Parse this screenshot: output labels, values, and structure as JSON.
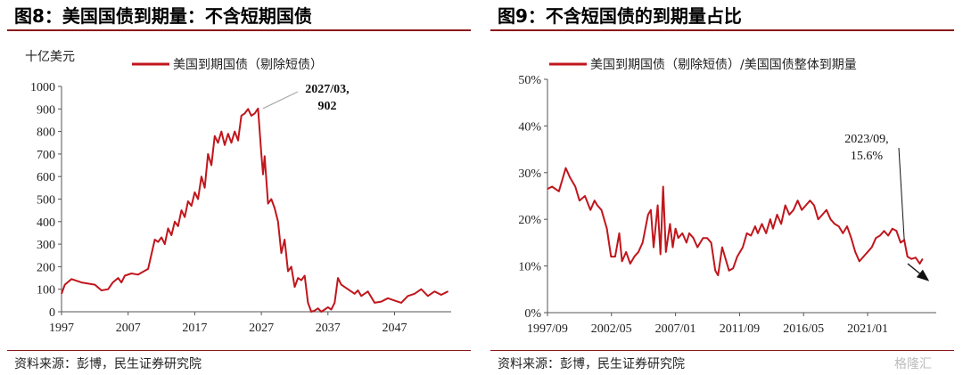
{
  "left_panel": {
    "title": "图8：美国国债到期量：不含短期国债",
    "source": "资料来源：彭博，民生证券研究院"
  },
  "right_panel": {
    "title": "图9：不含短国债的到期量占比",
    "source": "资料来源：彭博，民生证券研究院"
  },
  "watermark": "格隆汇",
  "colors": {
    "series": "#c0161c",
    "rule": "#8b1a1a",
    "axis": "#555555"
  },
  "chart_data": [
    {
      "type": "line",
      "unit_label": "十亿美元",
      "ylim": [
        0,
        1000
      ],
      "yticks": [
        "0",
        "100",
        "200",
        "300",
        "400",
        "500",
        "600",
        "700",
        "800",
        "900",
        "1000"
      ],
      "xlim": [
        1997,
        2055.5
      ],
      "xticks": [
        "1997",
        "2007",
        "2017",
        "2027",
        "2037",
        "2047"
      ],
      "grid": false,
      "legend_position": "top",
      "series": [
        {
          "name": "美国到期国债（剔除短债）",
          "x": [
            1997,
            1997.5,
            1998.5,
            2000,
            2002,
            2003,
            2004,
            2004.7,
            2005.5,
            2006,
            2006.5,
            2007.5,
            2008.5,
            2010,
            2011,
            2011.5,
            2012,
            2012.5,
            2013,
            2013.5,
            2014,
            2014.5,
            2015,
            2015.5,
            2016,
            2016.5,
            2017,
            2017.5,
            2018,
            2018.5,
            2019,
            2019.5,
            2020,
            2020.5,
            2021,
            2021.5,
            2022,
            2022.5,
            2023,
            2023.5,
            2024,
            2024.5,
            2025,
            2025.5,
            2026,
            2026.5,
            2027,
            2027.25,
            2027.5,
            2028,
            2028.5,
            2029,
            2029.5,
            2030,
            2030.5,
            2031,
            2031.5,
            2032,
            2032.5,
            2033,
            2033.5,
            2034,
            2034.5,
            2035,
            2035.5,
            2036,
            2036.5,
            2037,
            2037.5,
            2038,
            2038.5,
            2039,
            2039.5,
            2040,
            2040.5,
            2041,
            2041.5,
            2042,
            2043,
            2044,
            2045,
            2046,
            2047,
            2048,
            2049,
            2050,
            2051,
            2052,
            2053,
            2054,
            2055
          ],
          "values": [
            80,
            120,
            145,
            130,
            120,
            95,
            100,
            130,
            150,
            130,
            160,
            170,
            165,
            190,
            320,
            310,
            330,
            300,
            370,
            340,
            400,
            380,
            450,
            420,
            490,
            470,
            530,
            500,
            600,
            550,
            700,
            650,
            780,
            750,
            800,
            740,
            790,
            750,
            800,
            760,
            870,
            880,
            900,
            870,
            880,
            902,
            700,
            610,
            690,
            480,
            500,
            460,
            400,
            260,
            320,
            180,
            200,
            110,
            150,
            140,
            160,
            40,
            0,
            5,
            15,
            0,
            10,
            20,
            10,
            40,
            150,
            120,
            110,
            100,
            90,
            80,
            95,
            70,
            90,
            40,
            45,
            60,
            50,
            40,
            70,
            80,
            100,
            70,
            90,
            75,
            90
          ]
        }
      ],
      "annotation": {
        "text_line1": "2027/03,",
        "text_line2": "902",
        "x": 2027.25,
        "y": 902
      }
    },
    {
      "type": "line",
      "ylim": [
        0,
        50
      ],
      "yticks": [
        "0%",
        "10%",
        "20%",
        "30%",
        "40%",
        "50%"
      ],
      "xlim": [
        1997.67,
        2026.0
      ],
      "xticks": [
        "1997/09",
        "2002/05",
        "2007/01",
        "2011/09",
        "2016/05",
        "2021/01"
      ],
      "xtick_values": [
        1997.67,
        2002.33,
        2007.0,
        2011.67,
        2016.33,
        2021.0
      ],
      "grid": false,
      "legend_position": "top",
      "series": [
        {
          "name": "美国到期国债（剔除短债）/美国国债整体到期量",
          "x": [
            1997.67,
            1998,
            1998.5,
            1999,
            1999.3,
            1999.7,
            2000,
            2000.4,
            2000.8,
            2001.1,
            2001.3,
            2001.6,
            2002,
            2002.3,
            2002.6,
            2002.9,
            2003.1,
            2003.4,
            2003.7,
            2004,
            2004.3,
            2004.6,
            2005,
            2005.2,
            2005.4,
            2005.7,
            2005.9,
            2006.1,
            2006.3,
            2006.6,
            2006.8,
            2007,
            2007.2,
            2007.5,
            2007.8,
            2008,
            2008.3,
            2008.6,
            2009,
            2009.3,
            2009.6,
            2009.9,
            2010.1,
            2010.4,
            2010.6,
            2010.9,
            2011.2,
            2011.5,
            2011.9,
            2012.2,
            2012.5,
            2012.8,
            2013,
            2013.3,
            2013.6,
            2013.9,
            2014.1,
            2014.4,
            2014.7,
            2015,
            2015.3,
            2015.6,
            2015.9,
            2016.2,
            2016.5,
            2016.8,
            2017.1,
            2017.4,
            2017.7,
            2018,
            2018.3,
            2018.6,
            2018.9,
            2019.2,
            2019.5,
            2019.8,
            2020.1,
            2020.4,
            2020.7,
            2021,
            2021.3,
            2021.6,
            2021.9,
            2022.2,
            2022.5,
            2022.8,
            2023.1,
            2023.4,
            2023.67,
            2023.9,
            2024.2,
            2024.5,
            2024.8,
            2025
          ],
          "values": [
            26.5,
            27,
            26,
            31,
            29,
            27,
            24,
            25,
            22,
            24,
            23,
            22,
            18,
            12,
            12,
            17,
            11,
            13,
            10.5,
            12,
            13,
            15,
            21,
            22,
            14,
            23,
            12.5,
            27,
            13,
            19,
            14,
            18,
            16,
            17,
            15,
            17,
            16,
            14,
            16,
            16,
            15,
            9,
            8,
            14,
            12,
            9,
            9.5,
            12,
            14,
            17,
            16.5,
            18.5,
            17,
            19,
            17,
            20,
            18,
            21,
            19,
            23,
            21,
            22,
            24,
            22,
            23,
            24,
            23,
            20,
            21,
            22,
            20,
            19,
            18.5,
            17,
            18.5,
            16,
            13,
            11,
            12,
            13,
            14,
            16,
            16.5,
            17.5,
            16.5,
            18,
            17.5,
            15,
            15.6,
            12,
            11.5,
            11.8,
            10.5,
            11.5
          ]
        }
      ],
      "annotation": {
        "text_line1": "2023/09,",
        "text_line2": "15.6%",
        "x": 2023.67,
        "y": 15.6
      }
    }
  ]
}
